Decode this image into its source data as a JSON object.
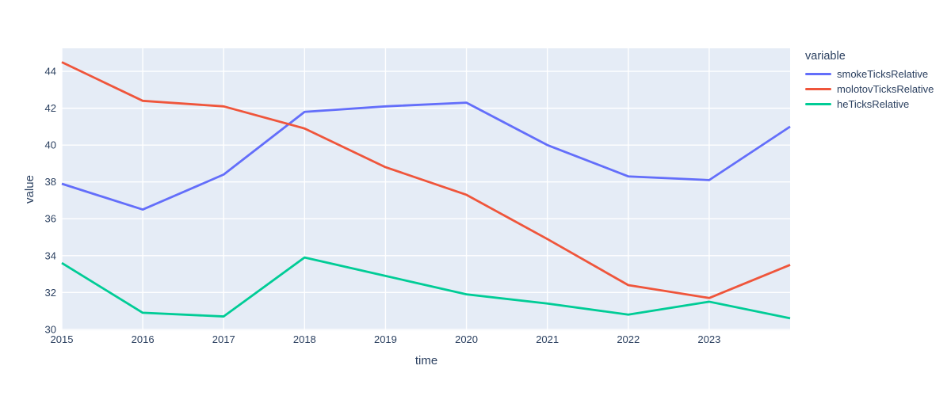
{
  "chart_data": {
    "type": "line",
    "title": "",
    "x": [
      2015,
      2016,
      2017,
      2018,
      2019,
      2020,
      2021,
      2022,
      2023,
      2024
    ],
    "series": [
      {
        "name": "smokeTicksRelative",
        "color": "#636EFA",
        "values": [
          37.9,
          36.5,
          38.4,
          41.8,
          42.1,
          42.3,
          40.0,
          38.3,
          38.1,
          41.0
        ]
      },
      {
        "name": "molotovTicksRelative",
        "color": "#EF553B",
        "values": [
          44.5,
          42.4,
          42.1,
          40.9,
          38.8,
          37.3,
          34.9,
          32.4,
          31.7,
          33.5
        ]
      },
      {
        "name": "heTicksRelative",
        "color": "#00CC96",
        "values": [
          33.6,
          30.9,
          30.7,
          33.9,
          32.9,
          31.9,
          31.4,
          30.8,
          31.5,
          30.6
        ]
      }
    ],
    "xlabel": "time",
    "ylabel": "value",
    "x_tick_labels": [
      "2015",
      "2016",
      "2017",
      "2018",
      "2019",
      "2020",
      "2021",
      "2022",
      "2023"
    ],
    "y_tick_labels": [
      "30",
      "32",
      "34",
      "36",
      "38",
      "40",
      "42",
      "44"
    ],
    "x_range": [
      2015,
      2024
    ],
    "y_range": [
      29.95,
      45.25
    ],
    "grid": true,
    "legend": {
      "title": "variable",
      "position": "right-top"
    },
    "colors": {
      "plot_background": "#E5ECF6",
      "gridline": "#FFFFFF",
      "text": "#2A3F5F"
    }
  }
}
